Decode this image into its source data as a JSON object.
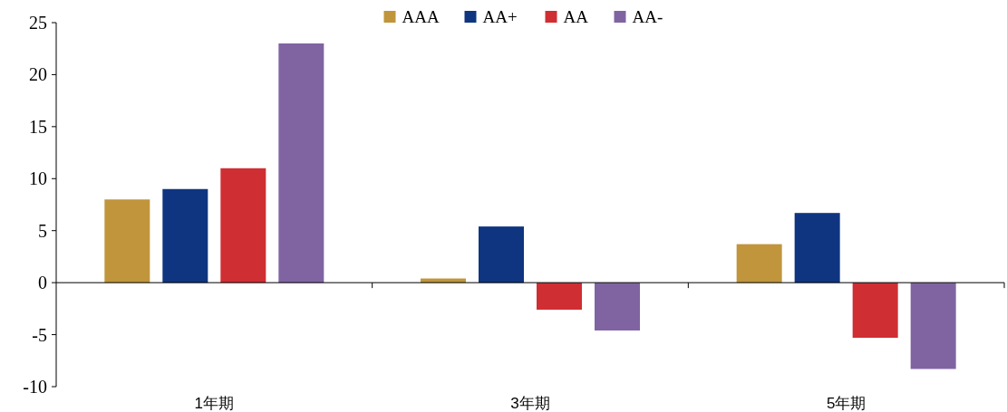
{
  "chart_data": {
    "type": "bar",
    "categories": [
      "1年期",
      "3年期",
      "5年期"
    ],
    "series": [
      {
        "name": "AAA",
        "color": "#c0953c",
        "values": [
          8.0,
          0.4,
          3.7
        ]
      },
      {
        "name": "AA+",
        "color": "#0f3580",
        "values": [
          9.0,
          5.4,
          6.7
        ]
      },
      {
        "name": "AA",
        "color": "#cf2e33",
        "values": [
          11.0,
          -2.6,
          -5.3
        ]
      },
      {
        "name": "AA-",
        "color": "#8064a2",
        "values": [
          23.0,
          -4.6,
          -8.3
        ]
      }
    ],
    "ylim": [
      -10,
      25
    ],
    "yticks": [
      -10,
      -5,
      0,
      5,
      10,
      15,
      20,
      25
    ],
    "legend": "top"
  }
}
